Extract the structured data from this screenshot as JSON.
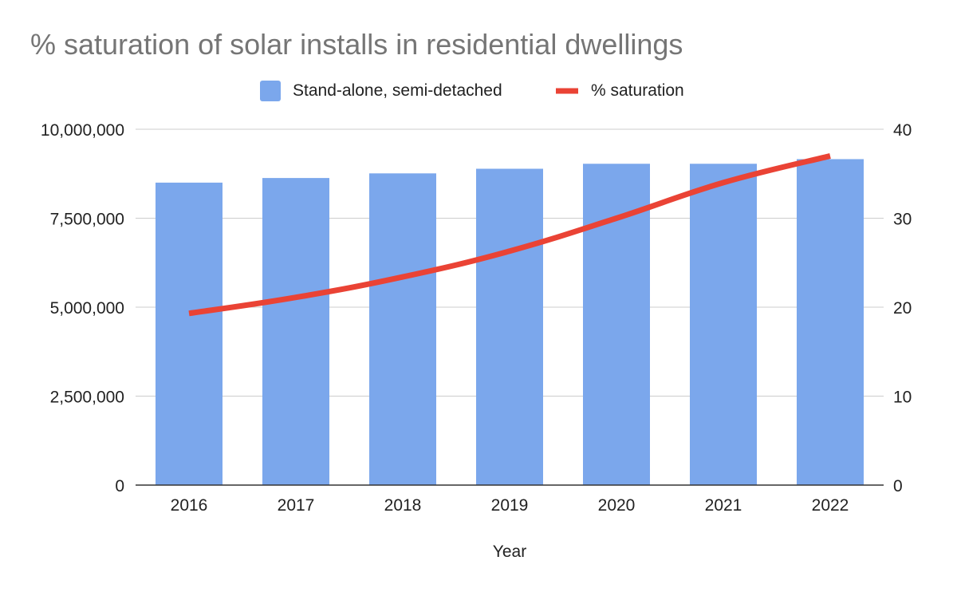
{
  "chart_data": {
    "type": "bar",
    "title": "% saturation of solar installs in residential dwellings",
    "xlabel": "Year",
    "ylabel": "",
    "categories": [
      "2016",
      "2017",
      "2018",
      "2019",
      "2020",
      "2021",
      "2022"
    ],
    "series": [
      {
        "name": "Stand-alone, semi-detached",
        "type": "bar",
        "axis": "left",
        "color": "#7ba7ec",
        "values": [
          8500000,
          8630000,
          8760000,
          8890000,
          9030000,
          9030000,
          9160000
        ]
      },
      {
        "name": "% saturation",
        "type": "line",
        "axis": "right",
        "color": "#ea4335",
        "values": [
          19.3,
          21.1,
          23.4,
          26.3,
          30.0,
          34.0,
          37.0
        ]
      }
    ],
    "ylim_left": [
      0,
      10000000
    ],
    "ylim_right": [
      0,
      40
    ],
    "left_ticks": [
      "0",
      "2,500,000",
      "5,000,000",
      "7,500,000",
      "10,000,000"
    ],
    "right_ticks": [
      "0",
      "10",
      "20",
      "30",
      "40"
    ],
    "legend": "top-center",
    "grid": true
  }
}
